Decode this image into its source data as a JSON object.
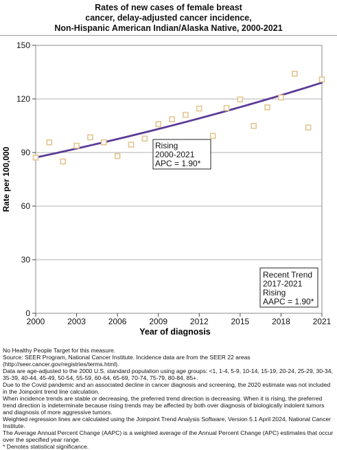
{
  "title": {
    "line1": "Rates of new cases of female breast",
    "line2": "cancer, delay-adjusted cancer incidence,",
    "line3": "Non-Hispanic American Indian/Alaska Native,  2000-2021"
  },
  "trend_box_1": {
    "line1": "Rising",
    "line2": "2000-2021",
    "line3": "APC =  1.90*"
  },
  "trend_box_2": {
    "line1": "Recent Trend",
    "line2": "2017-2021",
    "line3": "Rising",
    "line4": "AAPC =  1.90*"
  },
  "notes": [
    "No Healthy People Target for this measure.",
    "Source: SEER Program, National Cancer Institute. Incidence data are from the SEER 22 areas (http://seer.cancer.gov/registries/terms.html).",
    "Data are age-adjusted to the 2000 U.S. standard population using age groups: <1, 1-4, 5-9, 10-14, 15-19, 20-24, 25-29, 30-34, 35-39, 40-44, 45-49, 50-54, 55-59, 60-64, 65-69, 70-74, 75-79, 80-84, 85+.",
    "Due to the Covid pandemic and an associated decline in cancer diagnosis and screening, the 2020 estimate was not included in the Joinpoint trend line calculation.",
    "When incidence trends are stable or decreasing, the preferred trend direction is decreasing. When it is rising, the preferred trend direction is indeterminate because rising trends may be affected by both over diagnosis of biologically indolent tumors and diagnosis of more aggressive tumors.",
    "Weighted regression lines are calculated using the Joinpoint Trend Analysis Software, Version 5.1 April 2024, National Cancer Institute.",
    "The Average Annual Percent Change (AAPC) is a weighted average of the Annual Percent Change (APC) estimates that occur over the specified year range.",
    "* Denotes statistical significance."
  ],
  "colors": {
    "trend_line": "#5b3a96",
    "observed_marker": "#e3c58e",
    "grid": "#b0b0b0",
    "plot_background": "#ffffff"
  },
  "chart_data": {
    "type": "scatter",
    "xlabel": "Year of diagnosis",
    "ylabel": "Rate per 100,000",
    "xlim": [
      2000,
      2021
    ],
    "ylim": [
      0,
      150
    ],
    "xticks": [
      "2000",
      "2003",
      "2006",
      "2009",
      "2012",
      "2015",
      "2018",
      "2021"
    ],
    "yticks": [
      "0",
      "30",
      "60",
      "90",
      "120",
      "150"
    ],
    "grid": true,
    "series": [
      {
        "marker": "open-square",
        "x": [
          2000,
          2001,
          2002,
          2003,
          2004,
          2005,
          2006,
          2007,
          2008,
          2009,
          2010,
          2011,
          2012,
          2013,
          2014,
          2015,
          2016,
          2017,
          2018,
          2019,
          2020,
          2021
        ],
        "y": [
          87.2,
          95.7,
          85.0,
          93.8,
          98.5,
          95.7,
          88.0,
          94.4,
          97.8,
          105.9,
          108.6,
          111.1,
          114.6,
          99.3,
          114.9,
          119.7,
          104.9,
          115.3,
          120.8,
          134.1,
          104.0,
          130.9
        ]
      },
      {
        "style": "line",
        "x": [
          2000,
          2021
        ],
        "y": [
          87.2,
          129.1
        ],
        "apc": 1.9
      }
    ]
  }
}
